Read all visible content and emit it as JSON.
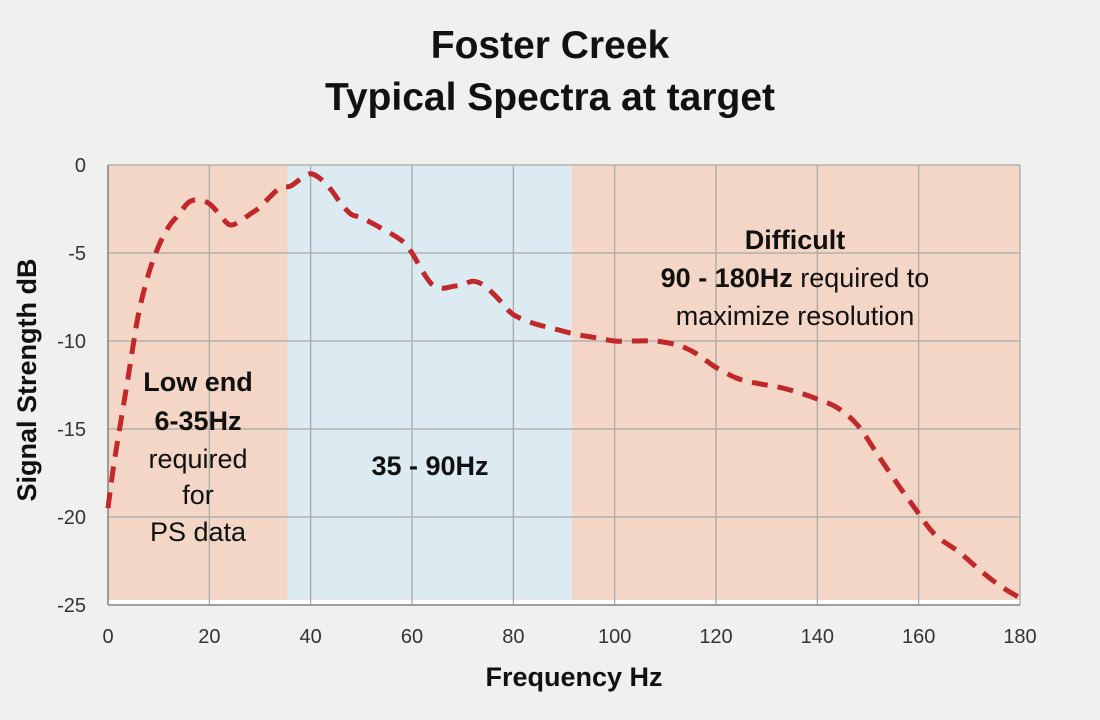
{
  "chart_data": {
    "type": "line",
    "title": [
      "Foster Creek",
      "Typical Spectra at target"
    ],
    "xlabel": "Frequency Hz",
    "ylabel": "Signal Strength dB",
    "xlim": [
      0,
      180
    ],
    "ylim": [
      -25,
      0
    ],
    "xticks": [
      0,
      20,
      40,
      60,
      80,
      100,
      120,
      140,
      160,
      180
    ],
    "yticks": [
      0,
      -5,
      -10,
      -15,
      -20,
      -25
    ],
    "grid": true,
    "series": [
      {
        "line_style": "dashed",
        "color": "#c0282a",
        "x": [
          0,
          1,
          2,
          4,
          6,
          8,
          10,
          12,
          14,
          16,
          18,
          20,
          22,
          24,
          26,
          28,
          30,
          32,
          34,
          36,
          38,
          40,
          42,
          44,
          46,
          48,
          50,
          54,
          58,
          60,
          62,
          64,
          66,
          68,
          70,
          72,
          74,
          76,
          78,
          80,
          84,
          88,
          92,
          96,
          100,
          104,
          108,
          112,
          114,
          116,
          118,
          120,
          124,
          128,
          132,
          136,
          140,
          144,
          148,
          152,
          156,
          158,
          160,
          162,
          164,
          168,
          172,
          176,
          180
        ],
        "y": [
          -19.5,
          -17.3,
          -15.5,
          -12.0,
          -8.5,
          -6.2,
          -4.6,
          -3.5,
          -2.8,
          -2.1,
          -2.0,
          -2.2,
          -2.8,
          -3.4,
          -3.2,
          -2.8,
          -2.4,
          -1.8,
          -1.3,
          -1.2,
          -0.8,
          -0.5,
          -0.8,
          -1.4,
          -2.2,
          -2.8,
          -3.0,
          -3.6,
          -4.3,
          -5.0,
          -6.0,
          -6.8,
          -7.0,
          -6.9,
          -6.8,
          -6.6,
          -6.8,
          -7.3,
          -7.9,
          -8.5,
          -9.0,
          -9.3,
          -9.6,
          -9.8,
          -10.0,
          -10.0,
          -10.0,
          -10.2,
          -10.4,
          -10.7,
          -11.1,
          -11.5,
          -12.1,
          -12.4,
          -12.6,
          -12.9,
          -13.3,
          -13.8,
          -14.8,
          -16.5,
          -18.2,
          -19.0,
          -19.8,
          -20.6,
          -21.2,
          -22.0,
          -23.0,
          -23.9,
          -24.6
        ]
      }
    ],
    "regions": [
      {
        "x_start": 0,
        "x_end": 35.5,
        "color": "#f3d6c6"
      },
      {
        "x_start": 35.5,
        "x_end": 91.5,
        "color": "#dceaf2"
      },
      {
        "x_start": 91.5,
        "x_end": 180,
        "color": "#f3d6c6"
      }
    ],
    "annotations": {
      "low_end": [
        {
          "text": "Low end",
          "bold": true
        },
        {
          "text": "6-35Hz",
          "bold": true
        },
        {
          "text": "required",
          "bold": false
        },
        {
          "text": "for",
          "bold": false
        },
        {
          "text": "PS data",
          "bold": false
        }
      ],
      "mid": [
        {
          "text": "35 - 90Hz",
          "bold": true
        }
      ],
      "high": [
        {
          "text": "Difficult",
          "bold": true
        },
        {
          "bold_part": "90 - 180Hz",
          "rest": " required to"
        },
        {
          "text": "maximize resolution",
          "bold": false
        }
      ]
    }
  }
}
